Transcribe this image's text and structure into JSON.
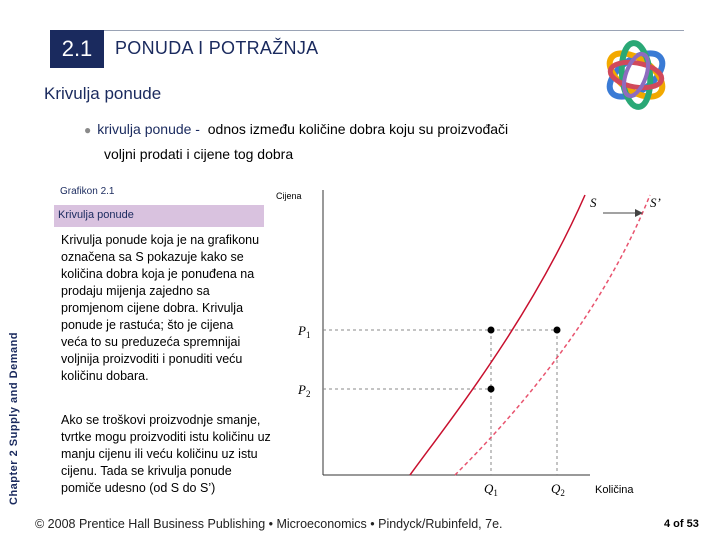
{
  "header": {
    "section_number": "2.1",
    "section_title": "PONUDA I POTRAŽNJA"
  },
  "subheading": "Krivulja ponude",
  "definition": {
    "term": "krivulja ponude -",
    "text_line1": "odnos između količine dobra koju su proizvođači",
    "text_line2": "voljni prodati i cijene tog dobra"
  },
  "side_label": "Chapter 2  Supply and Demand",
  "figure": {
    "label": "Grafikon 2.1",
    "title": "Krivulja ponude",
    "paragraph1": "Krivulja ponude koja je na grafikonu označena sa S pokazuje kako se količina dobra koja je ponuđena na prodaju mijenja zajedno sa promjenom cijene dobra. Krivulja ponude je rastuća; što je cijena veća to su preduzeća spremnijai voljnija proizvoditi i ponuditi veću količinu dobara.",
    "paragraph2": "Ako se troškovi proizvodnje smanje, tvrtke mogu proizvoditi istu količinu uz manju cijenu ili veću količinu uz istu cijenu. Tada se krivulja ponude pomiče udesno (od S do S’)"
  },
  "chart_data": {
    "type": "line",
    "ylabel": "Cijena",
    "xlabel": "Količina",
    "series": [
      {
        "name": "S",
        "color": "#c8102e",
        "style": "solid"
      },
      {
        "name": "S’",
        "color": "#e8536e",
        "style": "dashed"
      }
    ],
    "tick_labels_y": [
      "P1",
      "P2"
    ],
    "tick_labels_x": [
      "Q1",
      "Q2"
    ],
    "points": [
      {
        "x": "Q1",
        "y": "P1"
      },
      {
        "x": "Q2",
        "y": "P1"
      },
      {
        "x": "Q1",
        "y": "P2"
      }
    ],
    "shift_arrow": "S → S’"
  },
  "footer": {
    "text": "© 2008 Prentice Hall Business Publishing  •  Microeconomics  •  Pindyck/Rubinfeld, 7e.",
    "page": "4 of 53"
  },
  "colors": {
    "navy": "#1a2a5e",
    "curve_s": "#c8102e",
    "curve_s_prime": "#e8536e",
    "highlight_box": "#d9c2df"
  }
}
